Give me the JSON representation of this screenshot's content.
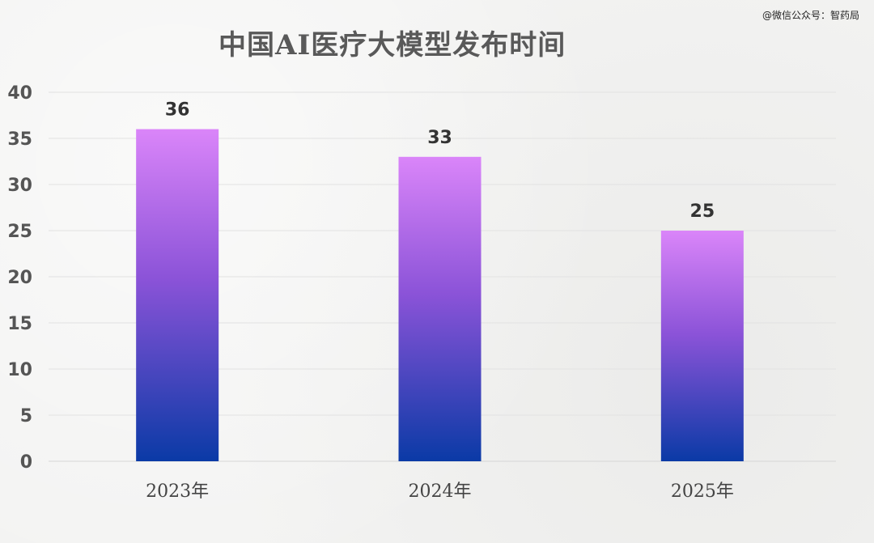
{
  "watermark": "@微信公众号：智药局",
  "chart_data": {
    "type": "bar",
    "title": "中国AI医疗大模型发布时间",
    "categories": [
      "2023年",
      "2024年",
      "2025年"
    ],
    "values": [
      36,
      33,
      25
    ],
    "data_labels": [
      "36",
      "33",
      "25"
    ],
    "ylim": [
      0,
      40
    ],
    "yticks": [
      0,
      5,
      10,
      15,
      20,
      25,
      30,
      35,
      40
    ],
    "xlabel": "",
    "ylabel": "",
    "grid": true,
    "legend": "none",
    "bar_gradient_top": "#da85f9",
    "bar_gradient_middle": "#8b53d8",
    "bar_gradient_bottom": "#0a3aa6"
  }
}
